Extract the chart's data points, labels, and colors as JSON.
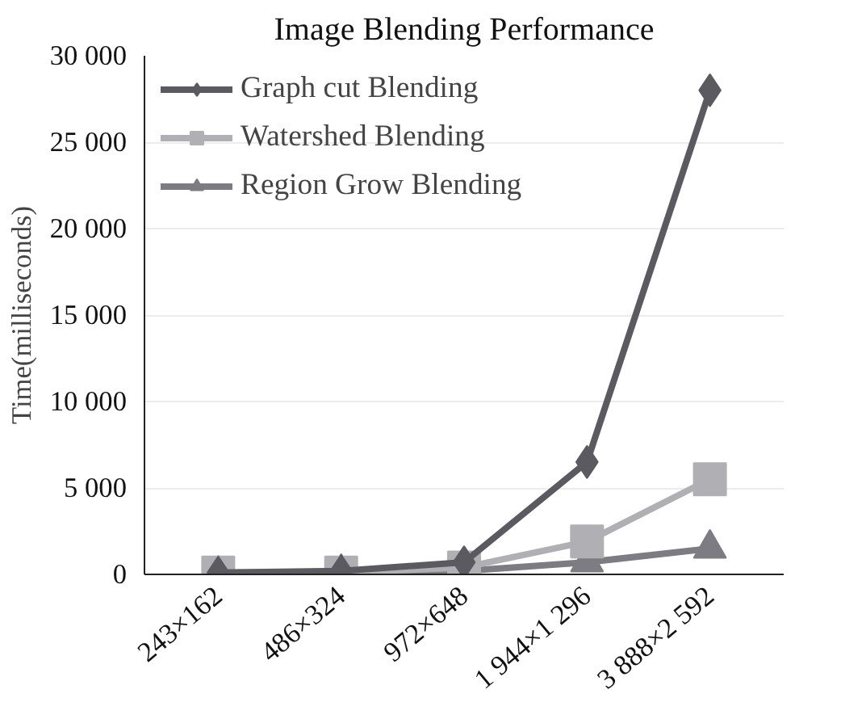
{
  "chart_data": {
    "type": "line",
    "title": "Image Blending Performance",
    "ylabel": "Time(milliseconds)",
    "categories": [
      "243×162",
      "486×324",
      "972×648",
      "1 944×1 296",
      "3 888×2 592"
    ],
    "series": [
      {
        "name": "Graph cut Blending",
        "color": "#5a5a60",
        "marker": "diamond",
        "values": [
          100,
          200,
          700,
          6500,
          28000
        ]
      },
      {
        "name": "Watershed Blending",
        "color": "#b0b0b4",
        "marker": "square",
        "values": [
          100,
          100,
          400,
          1900,
          5500
        ]
      },
      {
        "name": "Region Grow Blending",
        "color": "#7c7c82",
        "marker": "triangle",
        "values": [
          0,
          100,
          200,
          700,
          1500
        ]
      }
    ],
    "ylim": [
      0,
      30000
    ],
    "yticks": [
      {
        "value": 0,
        "label": "0"
      },
      {
        "value": 5000,
        "label": "5 000"
      },
      {
        "value": 10000,
        "label": "10 000"
      },
      {
        "value": 15000,
        "label": "15 000"
      },
      {
        "value": 20000,
        "label": "20 000"
      },
      {
        "value": 25000,
        "label": "25 000"
      },
      {
        "value": 30000,
        "label": "30 000"
      }
    ],
    "grid": "y",
    "legend": "top left"
  }
}
